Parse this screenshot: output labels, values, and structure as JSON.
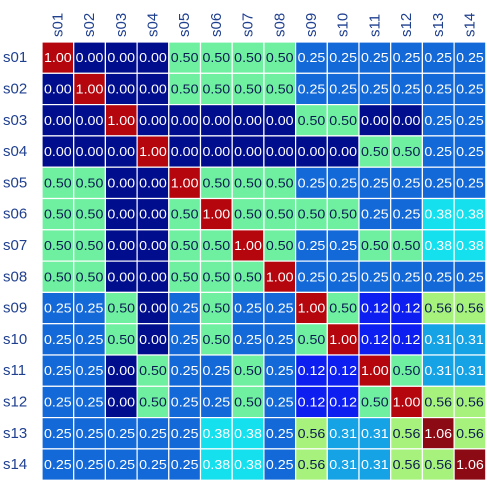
{
  "chart_data": {
    "type": "heatmap",
    "title": "",
    "xlabel": "",
    "ylabel": "",
    "columns": [
      "s01",
      "s02",
      "s03",
      "s04",
      "s05",
      "s06",
      "s07",
      "s08",
      "s09",
      "s10",
      "s11",
      "s12",
      "s13",
      "s14"
    ],
    "rows": [
      "s01",
      "s02",
      "s03",
      "s04",
      "s05",
      "s06",
      "s07",
      "s08",
      "s09",
      "s10",
      "s11",
      "s12",
      "s13",
      "s14"
    ],
    "value_labels": [
      [
        "1.00",
        "0.00",
        "0.00",
        "0.00",
        "0.50",
        "0.50",
        "0.50",
        "0.50",
        "0.25",
        "0.25",
        "0.25",
        "0.25",
        "0.25",
        "0.25"
      ],
      [
        "0.00",
        "1.00",
        "0.00",
        "0.00",
        "0.50",
        "0.50",
        "0.50",
        "0.50",
        "0.25",
        "0.25",
        "0.25",
        "0.25",
        "0.25",
        "0.25"
      ],
      [
        "0.00",
        "0.00",
        "1.00",
        "0.00",
        "0.00",
        "0.00",
        "0.00",
        "0.00",
        "0.50",
        "0.50",
        "0.00",
        "0.00",
        "0.25",
        "0.25"
      ],
      [
        "0.00",
        "0.00",
        "0.00",
        "1.00",
        "0.00",
        "0.00",
        "0.00",
        "0.00",
        "0.00",
        "0.00",
        "0.50",
        "0.50",
        "0.25",
        "0.25"
      ],
      [
        "0.50",
        "0.50",
        "0.00",
        "0.00",
        "1.00",
        "0.50",
        "0.50",
        "0.50",
        "0.25",
        "0.25",
        "0.25",
        "0.25",
        "0.25",
        "0.25"
      ],
      [
        "0.50",
        "0.50",
        "0.00",
        "0.00",
        "0.50",
        "1.00",
        "0.50",
        "0.50",
        "0.50",
        "0.50",
        "0.25",
        "0.25",
        "0.38",
        "0.38"
      ],
      [
        "0.50",
        "0.50",
        "0.00",
        "0.00",
        "0.50",
        "0.50",
        "1.00",
        "0.50",
        "0.25",
        "0.25",
        "0.50",
        "0.50",
        "0.38",
        "0.38"
      ],
      [
        "0.50",
        "0.50",
        "0.00",
        "0.00",
        "0.50",
        "0.50",
        "0.50",
        "1.00",
        "0.25",
        "0.25",
        "0.25",
        "0.25",
        "0.25",
        "0.25"
      ],
      [
        "0.25",
        "0.25",
        "0.50",
        "0.00",
        "0.25",
        "0.50",
        "0.25",
        "0.25",
        "1.00",
        "0.50",
        "0.12",
        "0.12",
        "0.56",
        "0.56"
      ],
      [
        "0.25",
        "0.25",
        "0.50",
        "0.00",
        "0.25",
        "0.50",
        "0.25",
        "0.25",
        "0.50",
        "1.00",
        "0.12",
        "0.12",
        "0.31",
        "0.31"
      ],
      [
        "0.25",
        "0.25",
        "0.00",
        "0.50",
        "0.25",
        "0.25",
        "0.50",
        "0.25",
        "0.12",
        "0.12",
        "1.00",
        "0.50",
        "0.31",
        "0.31"
      ],
      [
        "0.25",
        "0.25",
        "0.00",
        "0.50",
        "0.25",
        "0.25",
        "0.50",
        "0.25",
        "0.12",
        "0.12",
        "0.50",
        "1.00",
        "0.56",
        "0.56"
      ],
      [
        "0.25",
        "0.25",
        "0.25",
        "0.25",
        "0.25",
        "0.38",
        "0.38",
        "0.25",
        "0.56",
        "0.31",
        "0.31",
        "0.56",
        "1.06",
        "0.56"
      ],
      [
        "0.25",
        "0.25",
        "0.25",
        "0.25",
        "0.25",
        "0.38",
        "0.38",
        "0.25",
        "0.56",
        "0.31",
        "0.31",
        "0.56",
        "0.56",
        "1.06"
      ]
    ],
    "color_scale": [
      {
        "value": 0.0,
        "color": "#000d8c"
      },
      {
        "value": 0.12,
        "color": "#0d1ef0"
      },
      {
        "value": 0.25,
        "color": "#1469d8"
      },
      {
        "value": 0.31,
        "color": "#15a3e6"
      },
      {
        "value": 0.38,
        "color": "#14e0ee"
      },
      {
        "value": 0.5,
        "color": "#6ef0a0"
      },
      {
        "value": 0.56,
        "color": "#a6f27c"
      },
      {
        "value": 1.0,
        "color": "#b4060c"
      },
      {
        "value": 1.06,
        "color": "#8c0a14"
      }
    ],
    "cell_text_color": "#ffffff",
    "dark_text_values": [
      0.5,
      0.56
    ],
    "dark_text_color": "#0a1a50",
    "grid_line_color": "#ffffff",
    "tick_label_color": "#1f3f8f",
    "column_labels_position": "top",
    "column_labels_rotation": "vertical",
    "row_labels_position": "left"
  }
}
